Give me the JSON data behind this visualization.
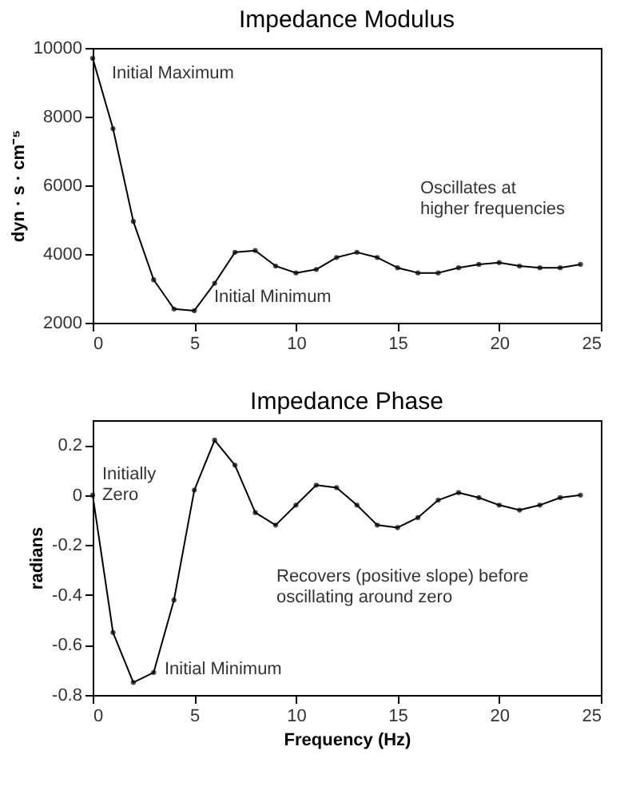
{
  "chart_data": [
    {
      "type": "line",
      "title": "Impedance Modulus",
      "ylabel": "dyn · s · cm⁻⁵",
      "x": [
        0,
        1,
        2,
        3,
        4,
        5,
        6,
        7,
        8,
        9,
        10,
        11,
        12,
        13,
        14,
        15,
        16,
        17,
        18,
        19,
        20,
        21,
        22,
        23,
        24
      ],
      "series": [
        {
          "color": "#000000",
          "values": [
            9700,
            7650,
            4950,
            3250,
            2400,
            2350,
            3150,
            4050,
            4100,
            3650,
            3450,
            3550,
            3900,
            4050,
            3900,
            3600,
            3450,
            3450,
            3600,
            3700,
            3750,
            3650,
            3600,
            3600,
            3700
          ]
        }
      ],
      "xlim": [
        0,
        25
      ],
      "xticks": [
        0,
        5,
        10,
        15,
        20,
        25
      ],
      "ylim": [
        2000,
        10000
      ],
      "yticks": [
        2000,
        4000,
        6000,
        8000,
        10000
      ],
      "grid": false,
      "marker": "circle",
      "line_style": "solid",
      "annotations": [
        "Initial Maximum",
        "Initial Minimum",
        "Oscillates at\nhigher frequencies"
      ]
    },
    {
      "type": "line",
      "title": "Impedance Phase",
      "xlabel": "Frequency (Hz)",
      "ylabel": "radians",
      "x": [
        0,
        1,
        2,
        3,
        4,
        5,
        6,
        7,
        8,
        9,
        10,
        11,
        12,
        13,
        14,
        15,
        16,
        17,
        18,
        19,
        20,
        21,
        22,
        23,
        24
      ],
      "series": [
        {
          "color": "#000000",
          "values": [
            0,
            -0.55,
            -0.75,
            -0.71,
            -0.42,
            0.02,
            0.22,
            0.12,
            -0.07,
            -0.12,
            -0.04,
            0.04,
            0.03,
            -0.04,
            -0.12,
            -0.13,
            -0.09,
            -0.02,
            0.01,
            -0.01,
            -0.04,
            -0.06,
            -0.04,
            -0.01,
            0
          ]
        }
      ],
      "xlim": [
        0,
        25
      ],
      "xticks": [
        0,
        5,
        10,
        15,
        20,
        25
      ],
      "ylim": [
        -0.8,
        0.3
      ],
      "yticks": [
        -0.8,
        -0.6,
        -0.4,
        -0.2,
        0,
        0.2
      ],
      "grid": false,
      "marker": "circle",
      "line_style": "solid",
      "annotations": [
        "Initially\nZero",
        "Initial Minimum",
        "Recovers (positive slope) before\noscillating around zero"
      ]
    }
  ]
}
